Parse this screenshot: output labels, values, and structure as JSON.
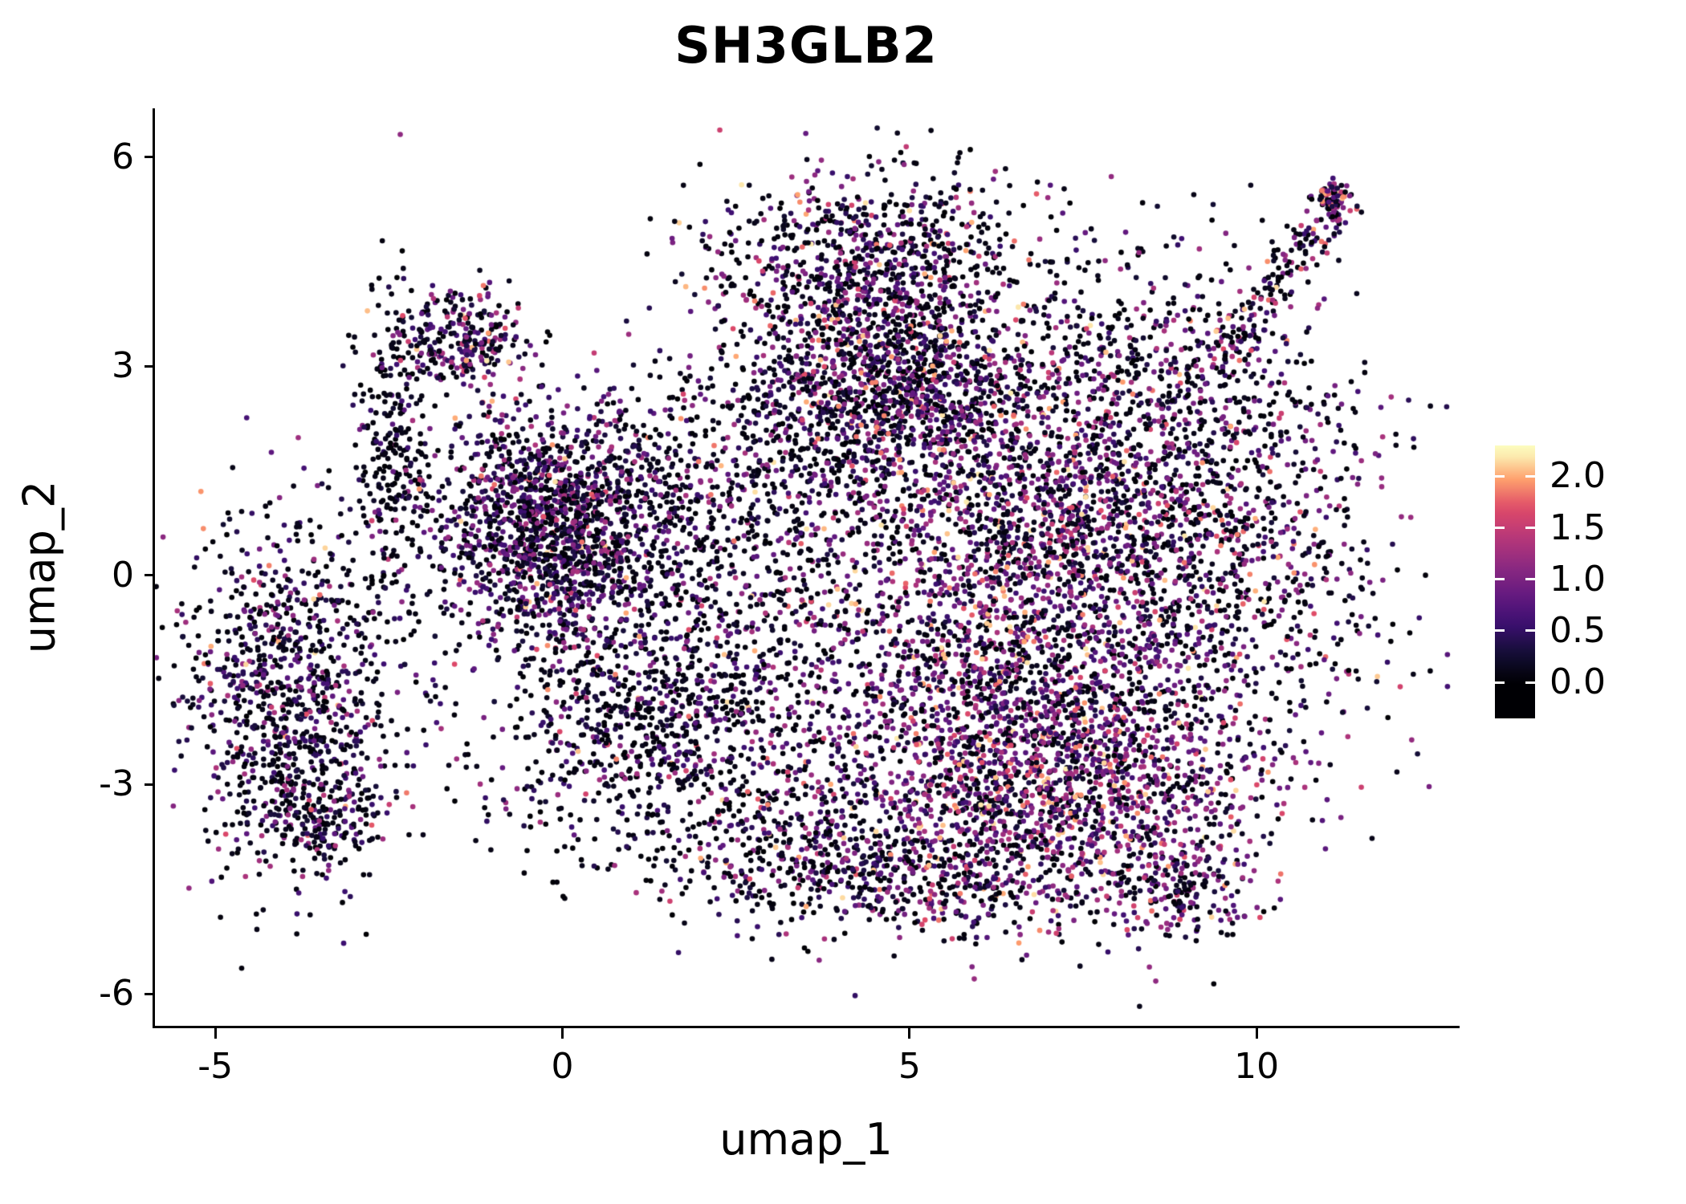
{
  "chart_data": {
    "type": "scatter",
    "title": "SH3GLB2",
    "xlabel": "umap_1",
    "ylabel": "umap_2",
    "xlim": [
      -5.87,
      12.89
    ],
    "ylim": [
      -6.46,
      6.7
    ],
    "grid": false,
    "legend_position": "right",
    "background_color": "#ffffff",
    "axis_color": "#000000",
    "point_radius": 3.3,
    "seed": 7,
    "x_ticks": [
      {
        "value": -5,
        "label": "-5"
      },
      {
        "value": 0,
        "label": "0"
      },
      {
        "value": 5,
        "label": "5"
      },
      {
        "value": 10,
        "label": "10"
      }
    ],
    "y_ticks": [
      {
        "value": 6,
        "label": "6"
      },
      {
        "value": 3,
        "label": "3"
      },
      {
        "value": 0,
        "label": "0"
      },
      {
        "value": -3,
        "label": "-3"
      },
      {
        "value": -6,
        "label": "-6"
      }
    ],
    "colorbar": {
      "title": "",
      "vmax": 2.25,
      "range": [
        -0.35,
        2.3
      ],
      "colormap": "magma",
      "ticks": [
        {
          "value": 2.0,
          "label": "2.0"
        },
        {
          "value": 1.5,
          "label": "1.5"
        },
        {
          "value": 1.0,
          "label": "1.0"
        },
        {
          "value": 0.5,
          "label": "0.5"
        },
        {
          "value": 0.0,
          "label": "0.0"
        }
      ],
      "stops": [
        {
          "pos": 0.0,
          "color": "#000004"
        },
        {
          "pos": 0.125,
          "color": "#140e36"
        },
        {
          "pos": 0.25,
          "color": "#3b0f70"
        },
        {
          "pos": 0.375,
          "color": "#641a80"
        },
        {
          "pos": 0.5,
          "color": "#8c2981"
        },
        {
          "pos": 0.625,
          "color": "#b73779"
        },
        {
          "pos": 0.75,
          "color": "#de4968"
        },
        {
          "pos": 0.875,
          "color": "#fe9f6d"
        },
        {
          "pos": 1.0,
          "color": "#fcfdbf"
        }
      ]
    },
    "value_bands": [
      [
        0.0,
        0.15
      ],
      [
        0.2,
        0.65
      ],
      [
        0.7,
        1.35
      ],
      [
        1.4,
        2.2
      ]
    ],
    "clusters": [
      {
        "name": "left-lobe",
        "n": 900,
        "cx": -3.9,
        "cy": -1.5,
        "sx": 0.75,
        "sy": 1.15,
        "mix": [
          0.5,
          0.27,
          0.2,
          0.03
        ]
      },
      {
        "name": "left-lobe-lower",
        "n": 260,
        "cx": -3.6,
        "cy": -3.4,
        "sx": 0.6,
        "sy": 0.5,
        "mix": [
          0.55,
          0.25,
          0.17,
          0.03
        ]
      },
      {
        "name": "left-arm-column",
        "n": 270,
        "cx": -2.45,
        "cy": 1.8,
        "sx": 0.28,
        "sy": 1.15,
        "mix": [
          0.75,
          0.14,
          0.09,
          0.02
        ]
      },
      {
        "name": "topleft-cluster",
        "n": 280,
        "cx": -1.45,
        "cy": 3.4,
        "sx": 0.5,
        "sy": 0.35,
        "mix": [
          0.42,
          0.26,
          0.24,
          0.08
        ]
      },
      {
        "name": "left-center-mass",
        "n": 1600,
        "cx": -0.1,
        "cy": 0.7,
        "sx": 0.85,
        "sy": 0.85,
        "mix": [
          0.38,
          0.32,
          0.26,
          0.04
        ]
      },
      {
        "name": "mid-sparse",
        "n": 700,
        "cx": 2.3,
        "cy": 0.9,
        "sx": 1.25,
        "sy": 1.15,
        "mix": [
          0.68,
          0.17,
          0.13,
          0.02
        ]
      },
      {
        "name": "mid-low-band",
        "n": 1000,
        "cx": 1.5,
        "cy": -2.1,
        "sx": 1.35,
        "sy": 0.95,
        "mix": [
          0.58,
          0.22,
          0.17,
          0.03
        ]
      },
      {
        "name": "bottom-center",
        "n": 380,
        "cx": 3.6,
        "cy": -4.0,
        "sx": 1.2,
        "sy": 0.5,
        "mix": [
          0.52,
          0.22,
          0.21,
          0.05
        ]
      },
      {
        "name": "top-dome",
        "n": 850,
        "cx": 4.4,
        "cy": 4.5,
        "sx": 1.15,
        "sy": 0.7,
        "mix": [
          0.5,
          0.22,
          0.23,
          0.05
        ]
      },
      {
        "name": "upper-mid-dense",
        "n": 1150,
        "cx": 4.7,
        "cy": 2.7,
        "sx": 1.05,
        "sy": 0.7,
        "mix": [
          0.42,
          0.25,
          0.27,
          0.06
        ]
      },
      {
        "name": "right-mass",
        "n": 2900,
        "cx": 6.9,
        "cy": 0.2,
        "sx": 1.9,
        "sy": 1.6,
        "mix": [
          0.36,
          0.22,
          0.33,
          0.09
        ]
      },
      {
        "name": "bottom-right-mass",
        "n": 1900,
        "cx": 6.9,
        "cy": -2.9,
        "sx": 1.6,
        "sy": 0.95,
        "mix": [
          0.3,
          0.2,
          0.38,
          0.12
        ]
      },
      {
        "name": "far-right-sparse",
        "n": 480,
        "cx": 9.8,
        "cy": 0.7,
        "sx": 1.1,
        "sy": 1.55,
        "mix": [
          0.55,
          0.18,
          0.22,
          0.05
        ]
      },
      {
        "name": "right-top-scatter",
        "n": 450,
        "cx": 8.4,
        "cy": 2.8,
        "sx": 1.2,
        "sy": 0.95,
        "mix": [
          0.55,
          0.2,
          0.2,
          0.05
        ]
      },
      {
        "name": "topright-arm",
        "shape": "line",
        "n": 170,
        "x1": 9.4,
        "y1": 2.9,
        "x2": 11.15,
        "y2": 5.45,
        "spread": 0.16,
        "mix": [
          0.45,
          0.2,
          0.25,
          0.1
        ]
      },
      {
        "name": "topright-tip",
        "n": 80,
        "cx": 11.1,
        "cy": 5.4,
        "sx": 0.13,
        "sy": 0.16,
        "mix": [
          0.3,
          0.2,
          0.32,
          0.18
        ]
      },
      {
        "name": "bottomright-tail",
        "n": 170,
        "cx": 8.9,
        "cy": -4.5,
        "sx": 0.55,
        "sy": 0.35,
        "mix": [
          0.4,
          0.2,
          0.3,
          0.1
        ]
      },
      {
        "name": "bottom-tail",
        "n": 260,
        "cx": 5.6,
        "cy": -4.5,
        "sx": 1.2,
        "sy": 0.4,
        "mix": [
          0.5,
          0.2,
          0.25,
          0.05
        ]
      }
    ]
  }
}
